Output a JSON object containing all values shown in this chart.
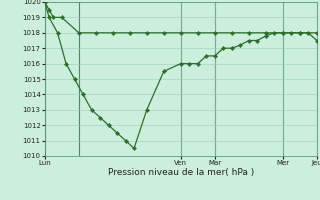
{
  "bg_color": "#cceedd",
  "grid_color": "#99ccbb",
  "line_color": "#2d6e2d",
  "xlabel": "Pression niveau de la mer( hPa )",
  "ylim": [
    1010,
    1020
  ],
  "yticks": [
    1010,
    1011,
    1012,
    1013,
    1014,
    1015,
    1016,
    1017,
    1018,
    1019,
    1020
  ],
  "xlim": [
    0,
    32
  ],
  "x_day_positions": [
    0,
    4,
    16,
    20,
    28,
    32
  ],
  "x_day_labels": [
    "Lun",
    "",
    "Ven",
    "Mar",
    "Mer",
    "Jeu"
  ],
  "line1_x": [
    0,
    0.5,
    1,
    2,
    4,
    6,
    8,
    10,
    12,
    14,
    16,
    18,
    20,
    22,
    24,
    26,
    28,
    30,
    32
  ],
  "line1_y": [
    1020,
    1019.5,
    1019,
    1019,
    1018,
    1018,
    1018,
    1018,
    1018,
    1018,
    1018,
    1018,
    1018,
    1018,
    1018,
    1018,
    1018,
    1018,
    1018
  ],
  "line2_x": [
    0,
    0.5,
    1.5,
    2.5,
    3.5,
    4.5,
    5.5,
    6.5,
    7.5,
    8.5,
    9.5,
    10.5,
    12,
    14,
    16,
    17,
    18,
    19,
    20,
    21,
    22,
    23,
    24,
    25,
    26,
    27,
    28,
    29,
    30,
    31,
    32
  ],
  "line2_y": [
    1020,
    1019,
    1018,
    1016,
    1015,
    1014,
    1013,
    1012.5,
    1012,
    1011.5,
    1011,
    1010.5,
    1013,
    1015.5,
    1016,
    1016,
    1016,
    1016.5,
    1016.5,
    1017,
    1017,
    1017.2,
    1017.5,
    1017.5,
    1017.8,
    1018,
    1018,
    1018,
    1018,
    1018,
    1017.5
  ],
  "vline_color": "#4a8a6a",
  "marker": "D",
  "markersize": 2.2,
  "linewidth": 0.9,
  "ylabel_fontsize": 5.5,
  "xlabel_fontsize": 6.5
}
